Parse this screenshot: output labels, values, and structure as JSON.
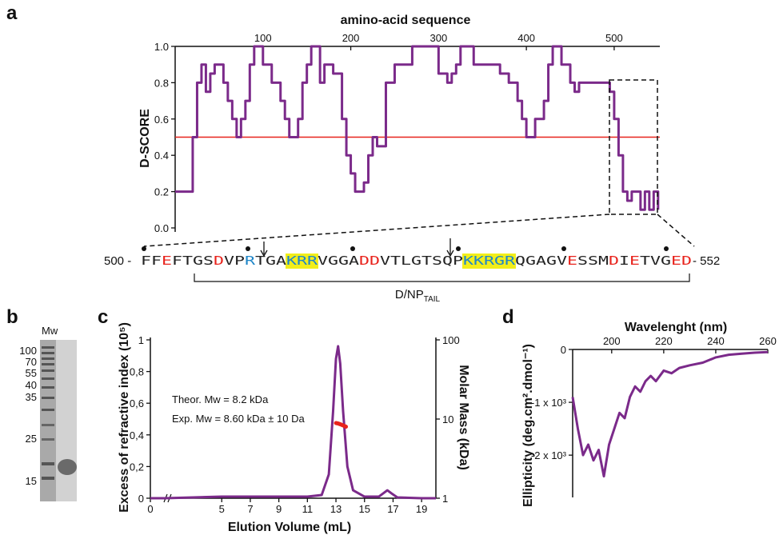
{
  "figure": {
    "labels": [
      "a",
      "b",
      "c",
      "d"
    ],
    "colors": {
      "trace": "#7b2a8a",
      "threshold": "#e8231c",
      "acidic": "#e8231c",
      "basic": "#1f86c8",
      "highlight": "#f2ee1a",
      "sec_mass": "#e8231c"
    }
  },
  "panel_a": {
    "top_axis_title": "amino-acid sequence",
    "y_title": "D-SCORE",
    "seq_start": "500 -",
    "seq_end": "- 552",
    "region_label": "D/NP",
    "region_subscript": "TAIL",
    "sequence": [
      {
        "t": "FF",
        "c": "n"
      },
      {
        "t": "E",
        "c": "a"
      },
      {
        "t": "FTGS",
        "c": "n"
      },
      {
        "t": "D",
        "c": "a"
      },
      {
        "t": "VP",
        "c": "n"
      },
      {
        "t": "R",
        "c": "b"
      },
      {
        "t": "TGA",
        "c": "n"
      },
      {
        "t": "KRR",
        "c": "h"
      },
      {
        "t": "VGGA",
        "c": "n"
      },
      {
        "t": "DD",
        "c": "a"
      },
      {
        "t": "VTLGTSQP",
        "c": "n"
      },
      {
        "t": "KKRGR",
        "c": "h"
      },
      {
        "t": "QGAGV",
        "c": "n"
      },
      {
        "t": "E",
        "c": "a"
      },
      {
        "t": "SSM",
        "c": "n"
      },
      {
        "t": "D",
        "c": "a"
      },
      {
        "t": "I",
        "c": "n"
      },
      {
        "t": "E",
        "c": "a"
      },
      {
        "t": "TVG",
        "c": "n"
      },
      {
        "t": "ED",
        "c": "a"
      }
    ]
  },
  "panel_b": {
    "lane_label": "Mw",
    "markers": [
      "100",
      "70",
      "55",
      "40",
      "35",
      "25",
      "15"
    ]
  },
  "panel_c": {
    "annotation_1": "Theor. Mw = 8.2 kDa",
    "annotation_2": "Exp. Mw = 8.60 kDa ± 10 Da"
  },
  "chart_data": [
    {
      "type": "line",
      "id": "disorder",
      "xlabel": "amino-acid sequence",
      "ylabel": "D-SCORE",
      "xlim": [
        0,
        552
      ],
      "ylim": [
        0,
        1.0
      ],
      "xticks": [
        100,
        200,
        300,
        400,
        500
      ],
      "yticks": [
        "0.0",
        "0.2",
        "0.4",
        "0.6",
        "0.8",
        "1.0"
      ],
      "threshold": 0.5,
      "x": [
        0,
        10,
        20,
        25,
        30,
        35,
        40,
        45,
        50,
        55,
        60,
        65,
        70,
        75,
        80,
        85,
        90,
        95,
        100,
        110,
        120,
        125,
        130,
        135,
        140,
        145,
        150,
        155,
        160,
        165,
        170,
        180,
        190,
        195,
        200,
        205,
        210,
        215,
        220,
        225,
        230,
        240,
        250,
        255,
        260,
        270,
        280,
        300,
        310,
        315,
        320,
        325,
        330,
        340,
        350,
        360,
        370,
        380,
        390,
        395,
        400,
        410,
        420,
        425,
        430,
        440,
        450,
        455,
        460,
        470,
        480,
        490,
        495,
        500,
        505,
        510,
        515,
        520,
        525,
        530,
        535,
        540,
        545,
        550
      ],
      "y": [
        0.2,
        0.2,
        0.5,
        0.8,
        0.9,
        0.75,
        0.85,
        0.9,
        0.9,
        0.8,
        0.7,
        0.6,
        0.5,
        0.6,
        0.7,
        0.9,
        1.0,
        1.0,
        0.9,
        0.8,
        0.7,
        0.6,
        0.5,
        0.5,
        0.6,
        0.8,
        0.9,
        1.0,
        1.0,
        0.8,
        0.9,
        0.85,
        0.6,
        0.4,
        0.3,
        0.2,
        0.2,
        0.25,
        0.4,
        0.5,
        0.45,
        0.8,
        0.9,
        0.9,
        0.9,
        1.0,
        1.0,
        0.85,
        0.8,
        0.85,
        0.9,
        1.0,
        1.0,
        0.9,
        0.9,
        0.9,
        0.85,
        0.8,
        0.7,
        0.6,
        0.5,
        0.6,
        0.7,
        0.9,
        1.0,
        0.9,
        0.8,
        0.75,
        0.8,
        0.8,
        0.8,
        0.8,
        0.75,
        0.6,
        0.4,
        0.2,
        0.15,
        0.2,
        0.2,
        0.1,
        0.2,
        0.1,
        0.2,
        0.1
      ]
    },
    {
      "type": "line",
      "id": "sec_mals",
      "xlabel": "Elution Volume (mL)",
      "ylabel": "Excess of refractive index (10⁵)",
      "y2label": "Molar Mass (kDa)",
      "xlim": [
        0,
        20
      ],
      "ylim": [
        0,
        1
      ],
      "xticks": [
        "0",
        "5",
        "7",
        "9",
        "11",
        "13",
        "15",
        "17",
        "19"
      ],
      "yticks": [
        "0",
        "0,2",
        "0,4",
        "0,6",
        "0,8",
        "1"
      ],
      "y2ticks": [
        "1",
        "10",
        "100"
      ],
      "y2_scale": "log",
      "x": [
        0,
        1,
        5,
        7,
        9,
        11,
        12,
        12.5,
        12.8,
        13.0,
        13.15,
        13.3,
        13.5,
        13.8,
        14.2,
        15,
        16,
        16.6,
        16.9,
        17.3,
        19,
        20
      ],
      "y": [
        0,
        0,
        0.01,
        0.01,
        0.01,
        0.01,
        0.02,
        0.15,
        0.55,
        0.88,
        0.96,
        0.85,
        0.55,
        0.2,
        0.05,
        0.01,
        0.01,
        0.05,
        0.03,
        0.005,
        0,
        0
      ],
      "mass_x": [
        13.0,
        13.15,
        13.3,
        13.5,
        13.7
      ],
      "mass_y": [
        8.9,
        8.8,
        8.6,
        8.3,
        8.0
      ]
    },
    {
      "type": "line",
      "id": "cd",
      "xlabel": "Wavelenght (nm)",
      "ylabel": "Ellipticity (deg.cm².dmol⁻¹)",
      "xlim": [
        185,
        260
      ],
      "ylim": [
        -2800,
        0
      ],
      "xticks": [
        "200",
        "220",
        "240",
        "260"
      ],
      "yticks": [
        "0",
        "-1 x 10³",
        "-2 x 10³"
      ],
      "x": [
        185,
        187,
        189,
        191,
        193,
        195,
        197,
        199,
        201,
        203,
        205,
        207,
        209,
        211,
        213,
        215,
        217,
        220,
        223,
        226,
        230,
        235,
        240,
        245,
        250,
        255,
        260
      ],
      "y": [
        -900,
        -1500,
        -2000,
        -1800,
        -2100,
        -1900,
        -2400,
        -1800,
        -1500,
        -1200,
        -1300,
        -900,
        -700,
        -800,
        -600,
        -500,
        -600,
        -400,
        -450,
        -350,
        -300,
        -250,
        -150,
        -100,
        -80,
        -60,
        -50
      ]
    }
  ]
}
